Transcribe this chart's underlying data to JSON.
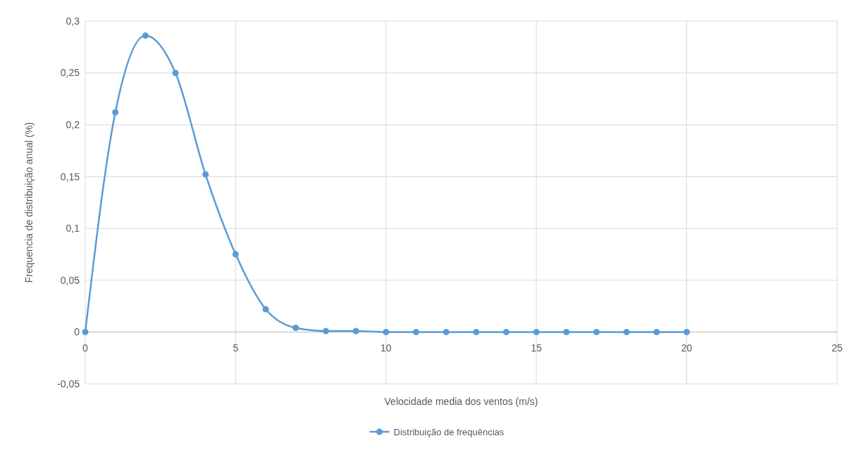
{
  "chart_data": {
    "type": "line",
    "xlabel": "Velocidade media dos ventos (m/s)",
    "ylabel": "Frequencia de distribuição anual (%)",
    "x": [
      0,
      1,
      2,
      3,
      4,
      5,
      6,
      7,
      8,
      9,
      10,
      11,
      12,
      13,
      14,
      15,
      16,
      17,
      18,
      19,
      20
    ],
    "series": [
      {
        "name": "Distribuição de frequências",
        "color": "#5b9bd5",
        "values": [
          0,
          0.212,
          0.286,
          0.25,
          0.152,
          0.075,
          0.022,
          0.004,
          0.001,
          0.001,
          0,
          0,
          0,
          0,
          0,
          0,
          0,
          0,
          0,
          0,
          0
        ]
      }
    ],
    "xlim": [
      0,
      25
    ],
    "xticks": [
      0,
      5,
      10,
      15,
      20,
      25
    ],
    "ylim": [
      -0.05,
      0.3
    ],
    "yticks": [
      {
        "value": -0.05,
        "label": "-0,05"
      },
      0,
      {
        "value": 0.05,
        "label": "0,05"
      },
      {
        "value": 0.1,
        "label": "0,1"
      },
      {
        "value": 0.15,
        "label": "0,15"
      },
      {
        "value": 0.2,
        "label": "0,2"
      },
      {
        "value": 0.25,
        "label": "0,25"
      },
      {
        "value": 0.3,
        "label": "0,3"
      }
    ],
    "grid": true,
    "legend": "bottom",
    "marker": "circle",
    "line_style": "solid"
  }
}
